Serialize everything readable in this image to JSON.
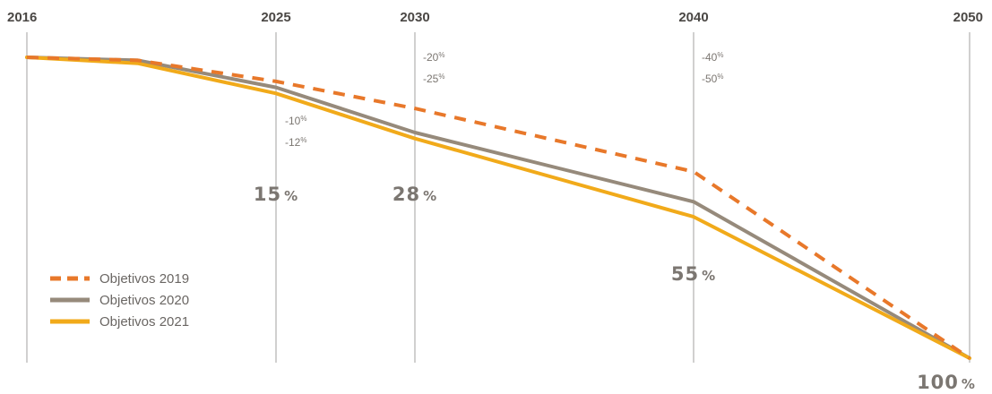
{
  "chart_data": {
    "type": "line",
    "title": "",
    "xlabel": "",
    "ylabel": "",
    "x_ticks": [
      "2016",
      "2025",
      "2030",
      "2040",
      "2050"
    ],
    "ylim": [
      0,
      100
    ],
    "grid": "vertical lines at each labeled year",
    "legend_placement": "bottom-left",
    "series": [
      {
        "name": "Objetivos 2019",
        "style": "dashed",
        "color": "#e8782a",
        "x": [
          2016,
          2020,
          2025,
          2030,
          2040,
          2050
        ],
        "y": [
          0,
          1,
          8,
          17,
          38,
          100
        ]
      },
      {
        "name": "Objetivos 2020",
        "style": "solid",
        "color": "#968a7b",
        "x": [
          2016,
          2020,
          2025,
          2030,
          2040,
          2050
        ],
        "y": [
          0,
          1,
          10,
          25,
          48,
          100
        ]
      },
      {
        "name": "Objetivos 2021",
        "style": "solid",
        "color": "#f1aa1a",
        "x": [
          2016,
          2020,
          2025,
          2030,
          2040,
          2050
        ],
        "y": [
          0,
          2,
          12,
          27,
          53,
          100
        ]
      }
    ],
    "annotations": {
      "big": [
        {
          "x": 2025,
          "value": "15",
          "unit": "%"
        },
        {
          "x": 2030,
          "value": "28",
          "unit": "%"
        },
        {
          "x": 2040,
          "value": "55",
          "unit": "%"
        },
        {
          "x": 2050,
          "value": "100",
          "unit": "%"
        }
      ],
      "small": [
        {
          "x": 2025,
          "lines": [
            {
              "value": "-10",
              "unit": "%"
            },
            {
              "value": "-12",
              "unit": "%"
            }
          ]
        },
        {
          "x": 2030,
          "lines": [
            {
              "value": "-20",
              "unit": "%"
            },
            {
              "value": "-25",
              "unit": "%"
            }
          ]
        },
        {
          "x": 2040,
          "lines": [
            {
              "value": "-40",
              "unit": "%"
            },
            {
              "value": "-50",
              "unit": "%"
            }
          ]
        }
      ]
    }
  }
}
